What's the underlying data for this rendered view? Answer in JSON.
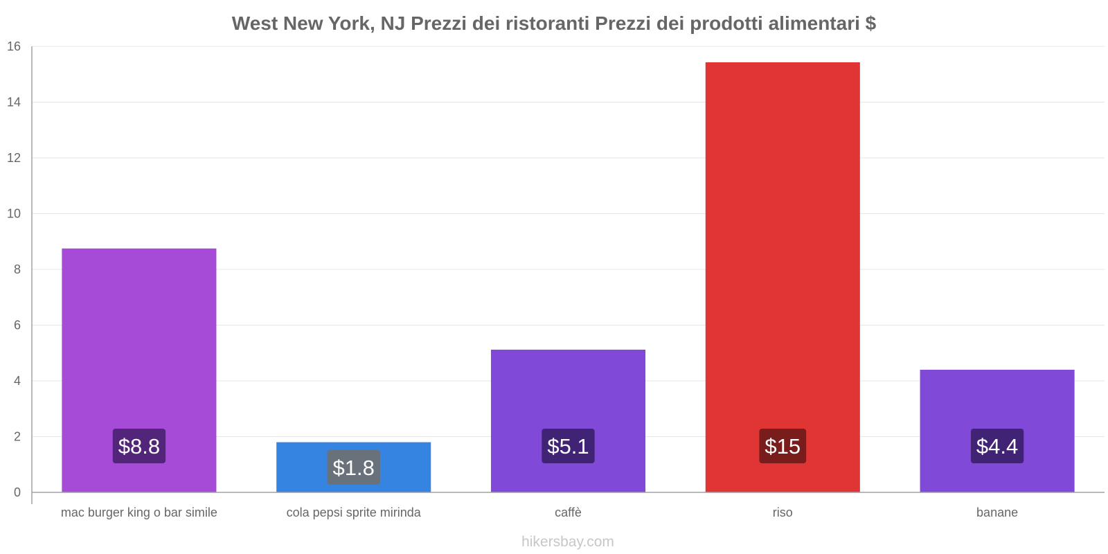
{
  "chart_data": {
    "type": "bar",
    "title": "West New York, NJ Prezzi dei ristoranti Prezzi dei prodotti alimentari $",
    "categories": [
      "mac burger king o bar simile",
      "cola pepsi sprite mirinda",
      "caffè",
      "riso",
      "banane"
    ],
    "values": [
      8.75,
      1.8,
      5.12,
      15.43,
      4.4
    ],
    "labels": [
      "$8.8",
      "$1.8",
      "$5.1",
      "$15",
      "$4.4"
    ],
    "colors": [
      "#a64ad8",
      "#3584e2",
      "#8049d8",
      "#e03535",
      "#8049d8"
    ],
    "label_bg": [
      "#4a2170",
      "#6f6f6f",
      "#3a1f6b",
      "#6e1a1a",
      "#3a1f6b"
    ],
    "ylim": [
      0,
      16
    ],
    "yticks": [
      "0",
      "2",
      "4",
      "6",
      "8",
      "10",
      "12",
      "14",
      "16"
    ],
    "xlabel": "",
    "ylabel": "",
    "grid": true
  },
  "watermark": "hikersbay.com"
}
